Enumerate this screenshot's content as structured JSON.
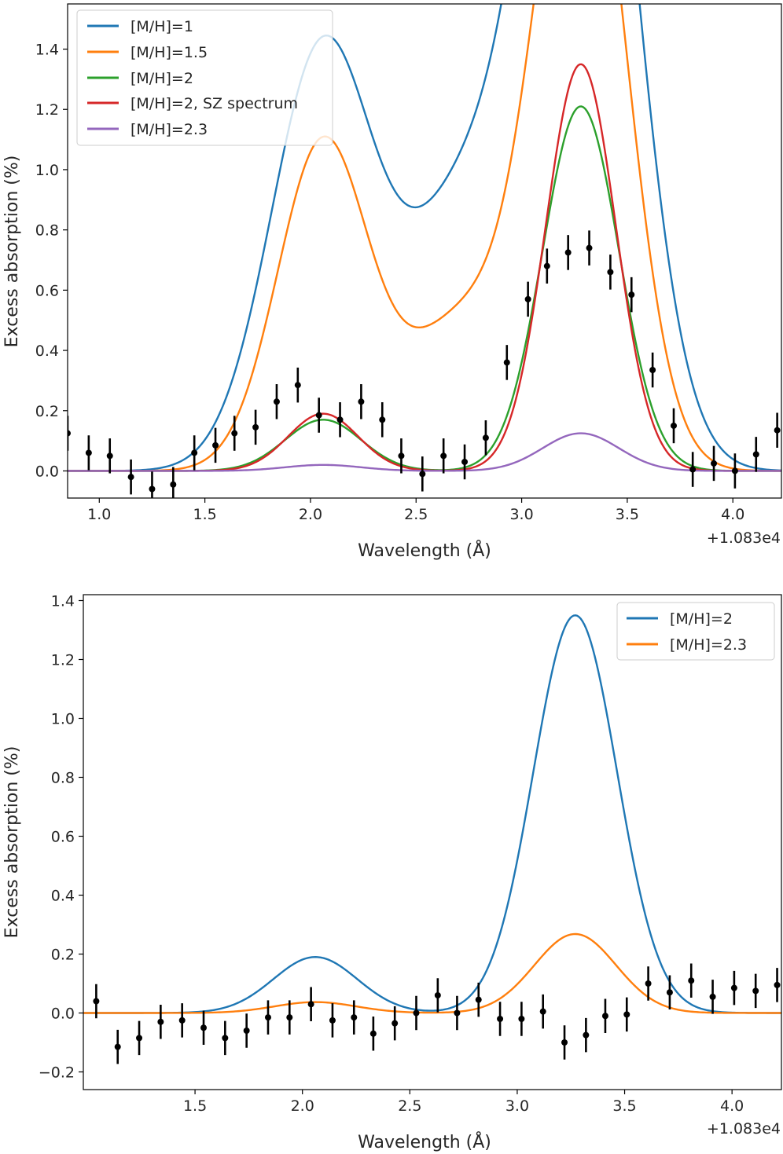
{
  "chart_data": [
    {
      "type": "line",
      "title": "",
      "xlabel": "Wavelength (Å)",
      "ylabel": "Excess absorption (%)",
      "x_offset_label": "+1.083e4",
      "xlim": [
        0.85,
        4.23
      ],
      "ylim": [
        -0.09,
        1.55
      ],
      "xticks": [
        1.0,
        1.5,
        2.0,
        2.5,
        3.0,
        3.5,
        4.0
      ],
      "xtick_labels": [
        "1.0",
        "1.5",
        "2.0",
        "2.5",
        "3.0",
        "3.5",
        "4.0"
      ],
      "yticks": [
        0.0,
        0.2,
        0.4,
        0.6,
        0.8,
        1.0,
        1.2,
        1.4
      ],
      "ytick_labels": [
        "0.0",
        "0.2",
        "0.4",
        "0.6",
        "0.8",
        "1.0",
        "1.2",
        "1.4"
      ],
      "legend_position": "top-left",
      "series": [
        {
          "name": "[M/H]=1",
          "color": "#1f77b4",
          "model": {
            "a1": 1.41,
            "a2": 2.95,
            "sigma": 0.245,
            "floor": 1.077
          }
        },
        {
          "name": "[M/H]=1.5",
          "color": "#ff7f0e",
          "model": {
            "a1": 1.09,
            "a2": 2.3,
            "sigma": 0.215,
            "floor": 0.573
          }
        },
        {
          "name": "[M/H]=2",
          "color": "#2ca02c",
          "model": {
            "a1": 0.17,
            "a2": 1.21,
            "sigma": 0.18,
            "floor": null
          }
        },
        {
          "name": "[M/H]=2, SZ spectrum",
          "color": "#d62728",
          "model": {
            "a1": 0.19,
            "a2": 1.35,
            "sigma": 0.165,
            "floor": null
          }
        },
        {
          "name": "[M/H]=2.3",
          "color": "#9467bd",
          "model": {
            "a1": 0.02,
            "a2": 0.125,
            "sigma": 0.18,
            "floor": null
          }
        }
      ],
      "model_centers": [
        2.06,
        3.28
      ],
      "data_points": {
        "color": "#000000",
        "x": [
          0.85,
          0.95,
          1.05,
          1.15,
          1.25,
          1.35,
          1.45,
          1.55,
          1.64,
          1.74,
          1.84,
          1.94,
          2.04,
          2.14,
          2.24,
          2.34,
          2.43,
          2.53,
          2.63,
          2.73,
          2.83,
          2.93,
          3.03,
          3.12,
          3.22,
          3.32,
          3.42,
          3.52,
          3.62,
          3.72,
          3.81,
          3.91,
          4.01,
          4.11,
          4.21
        ],
        "y": [
          0.125,
          0.06,
          0.05,
          -0.02,
          -0.06,
          -0.045,
          0.06,
          0.085,
          0.125,
          0.145,
          0.23,
          0.285,
          0.185,
          0.17,
          0.23,
          0.17,
          0.05,
          -0.01,
          0.05,
          0.03,
          0.11,
          0.36,
          0.57,
          0.68,
          0.725,
          0.74,
          0.66,
          0.585,
          0.335,
          0.15,
          0.005,
          0.025,
          0.0,
          0.055,
          0.135
        ],
        "yerr": 0.058
      }
    },
    {
      "type": "line",
      "title": "",
      "xlabel": "Wavelength (Å)",
      "ylabel": "Excess absorption (%)",
      "x_offset_label": "+1.083e4",
      "xlim": [
        0.98,
        4.23
      ],
      "ylim": [
        -0.26,
        1.42
      ],
      "xticks": [
        1.5,
        2.0,
        2.5,
        3.0,
        3.5,
        4.0
      ],
      "xtick_labels": [
        "1.5",
        "2.0",
        "2.5",
        "3.0",
        "3.5",
        "4.0"
      ],
      "yticks": [
        -0.2,
        0.0,
        0.2,
        0.4,
        0.6,
        0.8,
        1.0,
        1.2,
        1.4
      ],
      "ytick_labels": [
        "−0.2",
        "0.0",
        "0.2",
        "0.4",
        "0.6",
        "0.8",
        "1.0",
        "1.2",
        "1.4"
      ],
      "legend_position": "top-right",
      "series": [
        {
          "name": "[M/H]=2",
          "color": "#1f77b4",
          "model": {
            "a1": 0.19,
            "a2": 1.35,
            "sigma": 0.195,
            "floor": null
          }
        },
        {
          "name": "[M/H]=2.3",
          "color": "#ff7f0e",
          "model": {
            "a1": 0.037,
            "a2": 0.268,
            "sigma": 0.19,
            "floor": null
          }
        }
      ],
      "model_centers": [
        2.06,
        3.27
      ],
      "data_points": {
        "color": "#000000",
        "x": [
          1.04,
          1.14,
          1.24,
          1.34,
          1.44,
          1.54,
          1.64,
          1.74,
          1.84,
          1.94,
          2.04,
          2.14,
          2.24,
          2.33,
          2.43,
          2.53,
          2.63,
          2.72,
          2.82,
          2.92,
          3.02,
          3.12,
          3.22,
          3.32,
          3.41,
          3.51,
          3.61,
          3.71,
          3.81,
          3.91,
          4.01,
          4.11,
          4.21
        ],
        "y": [
          0.04,
          -0.115,
          -0.085,
          -0.03,
          -0.025,
          -0.05,
          -0.085,
          -0.06,
          -0.015,
          -0.015,
          0.03,
          -0.025,
          -0.015,
          -0.07,
          -0.035,
          0.0,
          0.06,
          0.0,
          0.045,
          -0.02,
          -0.02,
          0.005,
          -0.1,
          -0.075,
          -0.01,
          -0.005,
          0.1,
          0.07,
          0.11,
          0.055,
          0.085,
          0.075,
          0.095
        ],
        "yerr": 0.058
      }
    }
  ]
}
